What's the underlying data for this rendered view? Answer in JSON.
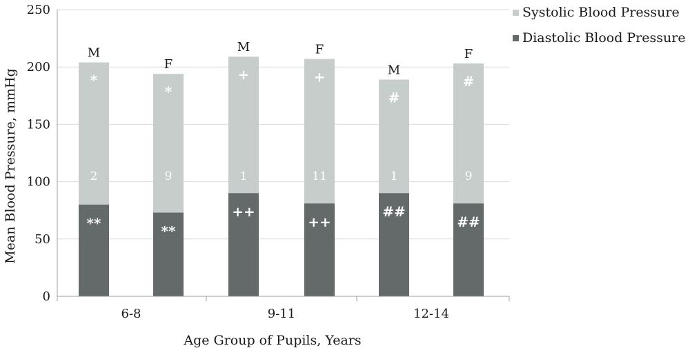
{
  "chart_data": {
    "type": "bar",
    "stacked": true,
    "title": "",
    "xlabel": "Age Group of Pupils, Years",
    "ylabel": "Mean Blood Pressure, mmHg",
    "ylim": [
      0,
      250
    ],
    "yticks": [
      0,
      50,
      100,
      150,
      200,
      250
    ],
    "grid": true,
    "legend_position": "top-right",
    "groups": [
      "6-8",
      "9-11",
      "12-14"
    ],
    "bars": [
      {
        "group": "6-8",
        "sex": "M",
        "diastolic": 80,
        "systolic_total": 204,
        "systolic_mark": "*",
        "number": "2",
        "diastolic_mark": "**"
      },
      {
        "group": "6-8",
        "sex": "F",
        "diastolic": 73,
        "systolic_total": 194,
        "systolic_mark": "*",
        "number": "9",
        "diastolic_mark": "**"
      },
      {
        "group": "9-11",
        "sex": "M",
        "diastolic": 90,
        "systolic_total": 209,
        "systolic_mark": "+",
        "number": "1",
        "diastolic_mark": "++"
      },
      {
        "group": "9-11",
        "sex": "F",
        "diastolic": 81,
        "systolic_total": 207,
        "systolic_mark": "+",
        "number": "11",
        "diastolic_mark": "++"
      },
      {
        "group": "12-14",
        "sex": "M",
        "diastolic": 90,
        "systolic_total": 189,
        "systolic_mark": "#",
        "number": "1",
        "diastolic_mark": "##"
      },
      {
        "group": "12-14",
        "sex": "F",
        "diastolic": 81,
        "systolic_total": 203,
        "systolic_mark": "#",
        "number": "9",
        "diastolic_mark": "##"
      }
    ],
    "series": [
      {
        "name": "Systolic Blood Pressure",
        "color": "#c6cdcb"
      },
      {
        "name": "Diastolic Blood Pressure",
        "color": "#636a69"
      }
    ]
  }
}
